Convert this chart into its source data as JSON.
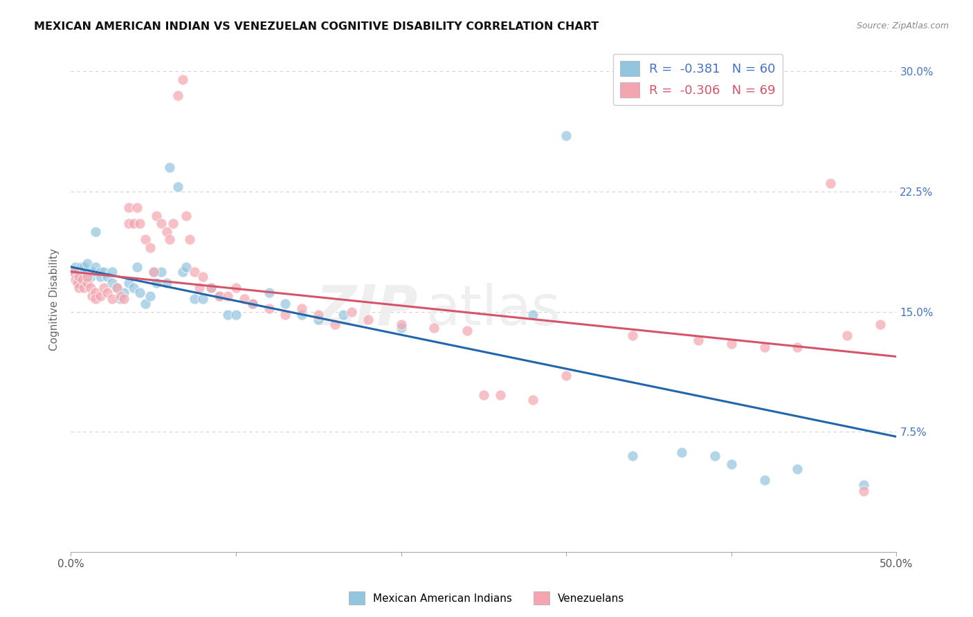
{
  "title": "MEXICAN AMERICAN INDIAN VS VENEZUELAN COGNITIVE DISABILITY CORRELATION CHART",
  "source": "Source: ZipAtlas.com",
  "ylabel": "Cognitive Disability",
  "watermark": "ZIPatlas",
  "blue_label": "Mexican American Indians",
  "pink_label": "Venezuelans",
  "blue_R": -0.381,
  "blue_N": 60,
  "pink_R": -0.306,
  "pink_N": 69,
  "ylim": [
    0.0,
    0.315
  ],
  "xlim": [
    0.0,
    0.5
  ],
  "yticks": [
    0.075,
    0.15,
    0.225,
    0.3
  ],
  "ytick_labels": [
    "7.5%",
    "15.0%",
    "22.5%",
    "30.0%"
  ],
  "background_color": "#ffffff",
  "blue_color": "#92c5de",
  "pink_color": "#f4a6b0",
  "blue_line_color": "#2166ac",
  "pink_line_color": "#d6546a",
  "grid_color": "#d0d0d0",
  "blue_scatter": [
    [
      0.002,
      0.175
    ],
    [
      0.003,
      0.178
    ],
    [
      0.004,
      0.175
    ],
    [
      0.005,
      0.172
    ],
    [
      0.005,
      0.168
    ],
    [
      0.006,
      0.178
    ],
    [
      0.007,
      0.175
    ],
    [
      0.008,
      0.172
    ],
    [
      0.008,
      0.178
    ],
    [
      0.01,
      0.175
    ],
    [
      0.01,
      0.18
    ],
    [
      0.012,
      0.172
    ],
    [
      0.013,
      0.175
    ],
    [
      0.015,
      0.2
    ],
    [
      0.015,
      0.178
    ],
    [
      0.018,
      0.175
    ],
    [
      0.018,
      0.172
    ],
    [
      0.02,
      0.175
    ],
    [
      0.022,
      0.172
    ],
    [
      0.025,
      0.168
    ],
    [
      0.025,
      0.175
    ],
    [
      0.028,
      0.165
    ],
    [
      0.03,
      0.158
    ],
    [
      0.032,
      0.162
    ],
    [
      0.035,
      0.168
    ],
    [
      0.038,
      0.165
    ],
    [
      0.04,
      0.178
    ],
    [
      0.042,
      0.162
    ],
    [
      0.045,
      0.155
    ],
    [
      0.048,
      0.16
    ],
    [
      0.05,
      0.175
    ],
    [
      0.052,
      0.168
    ],
    [
      0.055,
      0.175
    ],
    [
      0.058,
      0.168
    ],
    [
      0.06,
      0.24
    ],
    [
      0.065,
      0.228
    ],
    [
      0.068,
      0.175
    ],
    [
      0.07,
      0.178
    ],
    [
      0.075,
      0.158
    ],
    [
      0.08,
      0.158
    ],
    [
      0.085,
      0.165
    ],
    [
      0.09,
      0.16
    ],
    [
      0.095,
      0.148
    ],
    [
      0.1,
      0.148
    ],
    [
      0.11,
      0.155
    ],
    [
      0.12,
      0.162
    ],
    [
      0.13,
      0.155
    ],
    [
      0.14,
      0.148
    ],
    [
      0.15,
      0.145
    ],
    [
      0.165,
      0.148
    ],
    [
      0.2,
      0.14
    ],
    [
      0.28,
      0.148
    ],
    [
      0.3,
      0.26
    ],
    [
      0.34,
      0.06
    ],
    [
      0.37,
      0.062
    ],
    [
      0.39,
      0.06
    ],
    [
      0.4,
      0.055
    ],
    [
      0.42,
      0.045
    ],
    [
      0.44,
      0.052
    ],
    [
      0.48,
      0.042
    ]
  ],
  "pink_scatter": [
    [
      0.002,
      0.175
    ],
    [
      0.003,
      0.17
    ],
    [
      0.004,
      0.168
    ],
    [
      0.005,
      0.172
    ],
    [
      0.005,
      0.165
    ],
    [
      0.007,
      0.17
    ],
    [
      0.008,
      0.165
    ],
    [
      0.01,
      0.168
    ],
    [
      0.01,
      0.172
    ],
    [
      0.012,
      0.165
    ],
    [
      0.013,
      0.16
    ],
    [
      0.015,
      0.162
    ],
    [
      0.015,
      0.158
    ],
    [
      0.018,
      0.16
    ],
    [
      0.02,
      0.165
    ],
    [
      0.022,
      0.162
    ],
    [
      0.025,
      0.158
    ],
    [
      0.028,
      0.165
    ],
    [
      0.03,
      0.16
    ],
    [
      0.032,
      0.158
    ],
    [
      0.035,
      0.205
    ],
    [
      0.035,
      0.215
    ],
    [
      0.038,
      0.205
    ],
    [
      0.04,
      0.215
    ],
    [
      0.042,
      0.205
    ],
    [
      0.045,
      0.195
    ],
    [
      0.048,
      0.19
    ],
    [
      0.05,
      0.175
    ],
    [
      0.052,
      0.21
    ],
    [
      0.055,
      0.205
    ],
    [
      0.058,
      0.2
    ],
    [
      0.06,
      0.195
    ],
    [
      0.062,
      0.205
    ],
    [
      0.065,
      0.285
    ],
    [
      0.068,
      0.295
    ],
    [
      0.07,
      0.21
    ],
    [
      0.072,
      0.195
    ],
    [
      0.075,
      0.175
    ],
    [
      0.078,
      0.165
    ],
    [
      0.08,
      0.172
    ],
    [
      0.085,
      0.165
    ],
    [
      0.09,
      0.16
    ],
    [
      0.095,
      0.16
    ],
    [
      0.1,
      0.165
    ],
    [
      0.105,
      0.158
    ],
    [
      0.11,
      0.155
    ],
    [
      0.12,
      0.152
    ],
    [
      0.13,
      0.148
    ],
    [
      0.14,
      0.152
    ],
    [
      0.15,
      0.148
    ],
    [
      0.16,
      0.142
    ],
    [
      0.17,
      0.15
    ],
    [
      0.18,
      0.145
    ],
    [
      0.2,
      0.142
    ],
    [
      0.22,
      0.14
    ],
    [
      0.24,
      0.138
    ],
    [
      0.25,
      0.098
    ],
    [
      0.26,
      0.098
    ],
    [
      0.28,
      0.095
    ],
    [
      0.3,
      0.11
    ],
    [
      0.34,
      0.135
    ],
    [
      0.38,
      0.132
    ],
    [
      0.4,
      0.13
    ],
    [
      0.42,
      0.128
    ],
    [
      0.44,
      0.128
    ],
    [
      0.46,
      0.23
    ],
    [
      0.47,
      0.135
    ],
    [
      0.48,
      0.038
    ],
    [
      0.49,
      0.142
    ]
  ]
}
